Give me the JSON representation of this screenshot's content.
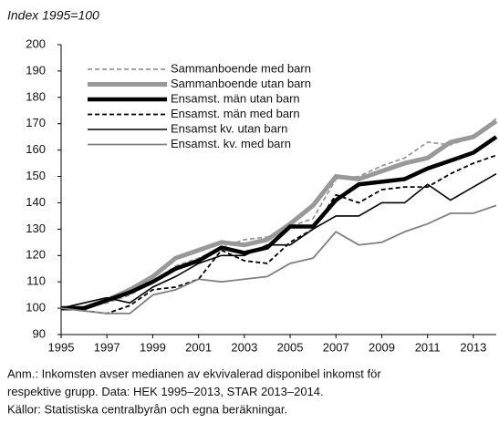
{
  "chart_data": {
    "type": "line",
    "ylabel": "Index 1995=100",
    "x": [
      1995,
      1996,
      1997,
      1998,
      1999,
      2000,
      2001,
      2002,
      2003,
      2004,
      2005,
      2006,
      2007,
      2008,
      2009,
      2010,
      2011,
      2012,
      2013,
      2014
    ],
    "xlim": [
      1995,
      2014
    ],
    "xticks": [
      1995,
      1997,
      1999,
      2001,
      2003,
      2005,
      2007,
      2009,
      2011,
      2013
    ],
    "ylim": [
      90,
      200
    ],
    "yticks": [
      90,
      100,
      110,
      120,
      130,
      140,
      150,
      160,
      170,
      180,
      190,
      200
    ],
    "series": [
      {
        "name": "Sammanboende med barn",
        "color": "#999999",
        "width": 1.8,
        "dash": "5,3",
        "values": [
          100,
          100,
          102,
          105,
          110,
          116,
          119,
          123,
          126,
          127,
          131,
          134,
          149,
          150,
          154,
          157,
          163,
          162,
          165,
          172
        ]
      },
      {
        "name": "Sammanboende utan barn",
        "color": "#999999",
        "width": 5,
        "dash": "none",
        "values": [
          100,
          100,
          103,
          107,
          112,
          119,
          122,
          125,
          124,
          126,
          132,
          139,
          150,
          149,
          152,
          155,
          157,
          163,
          165,
          171
        ]
      },
      {
        "name": "Ensamst. män utan barn",
        "color": "#000000",
        "width": 4.5,
        "dash": "none",
        "values": [
          100,
          100,
          103,
          106,
          110,
          115,
          118,
          123,
          121,
          123,
          131,
          131,
          141,
          147,
          148,
          149,
          153,
          156,
          159,
          165
        ]
      },
      {
        "name": "Ensamst. män med barn",
        "color": "#000000",
        "width": 1.8,
        "dash": "5,3",
        "values": [
          100,
          99,
          98,
          101,
          107,
          108,
          111,
          122,
          118,
          117,
          125,
          130,
          143,
          140,
          145,
          146,
          146,
          151,
          155,
          158
        ]
      },
      {
        "name": "Ensamst kv. utan barn",
        "color": "#000000",
        "width": 1.6,
        "dash": "none",
        "values": [
          100,
          102,
          104,
          102,
          108,
          112,
          117,
          120,
          120,
          124,
          124,
          130,
          135,
          135,
          140,
          140,
          147,
          141,
          146,
          151
        ]
      },
      {
        "name": "Ensamst. kv. med barn",
        "color": "#808080",
        "width": 1.8,
        "dash": "none",
        "values": [
          100,
          99,
          98,
          98,
          105,
          107,
          111,
          110,
          111,
          112,
          117,
          119,
          129,
          124,
          125,
          129,
          132,
          136,
          136,
          139
        ]
      }
    ],
    "notes": [
      "Anm.: Inkomsten avser medianen av ekvivalerad disponibel inkomst för",
      "respektive grupp. Data: HEK 1995–2013, STAR 2013–2014.",
      "Källor: Statistiska centralbyrån och egna beräkningar."
    ]
  }
}
